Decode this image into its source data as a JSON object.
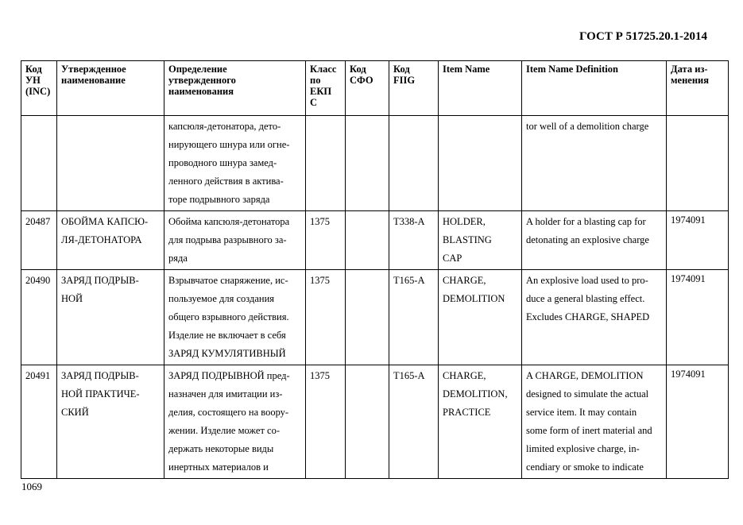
{
  "header": {
    "doc_code": "ГОСТ Р 51725.20.1-2014"
  },
  "footer": {
    "page_number": "1069"
  },
  "table": {
    "columns": [
      [
        "Код",
        "УН",
        "(INC)"
      ],
      [
        "Утвержденное",
        "наименование"
      ],
      [
        "Определение",
        "утвержденного",
        "наименования"
      ],
      [
        "Класс",
        "по",
        "ЕКП",
        "С"
      ],
      [
        "Код",
        "СФО"
      ],
      [
        "Код",
        "FIIG"
      ],
      [
        "Item Name"
      ],
      [
        "Item Name Definition"
      ],
      [
        "Дата из-",
        "менения"
      ]
    ],
    "rows": [
      [
        [],
        [],
        [
          "капсюля-детонатора, дето-",
          "нирующего шнура или огне-",
          "проводного шнура замед-",
          "ленного действия в актива-",
          "торе подрывного заряда"
        ],
        [],
        [],
        [],
        [],
        [
          "tor well of a demolition charge"
        ],
        []
      ],
      [
        [
          "20487"
        ],
        [
          "ОБОЙМА КАПСЮ-",
          "ЛЯ-ДЕТОНАТОРА"
        ],
        [
          "Обойма капсюля-детонатора",
          "для подрыва разрывного за-",
          "ряда"
        ],
        [
          "1375"
        ],
        [],
        [
          "T338-A"
        ],
        [
          "HOLDER,",
          "BLASTING",
          "CAP"
        ],
        [
          "A holder for a blasting cap for",
          "detonating an explosive charge"
        ],
        [
          "1974091"
        ]
      ],
      [
        [
          "20490"
        ],
        [
          "ЗАРЯД ПОДРЫВ-",
          "НОЙ"
        ],
        [
          "Взрывчатое снаряжение, ис-",
          "пользуемое для создания",
          "общего взрывного действия.",
          "Изделие не включает в себя",
          "ЗАРЯД КУМУЛЯТИВНЫЙ"
        ],
        [
          "1375"
        ],
        [],
        [
          "T165-A"
        ],
        [
          "CHARGE,",
          "DEMOLITION"
        ],
        [
          "An explosive load used to pro-",
          "duce a general blasting effect.",
          "Excludes CHARGE, SHAPED"
        ],
        [
          "1974091"
        ]
      ],
      [
        [
          "20491"
        ],
        [
          "ЗАРЯД ПОДРЫВ-",
          "НОЙ ПРАКТИЧЕ-",
          "СКИЙ"
        ],
        [
          "ЗАРЯД ПОДРЫВНОЙ пред-",
          "назначен для имитации из-",
          "делия, состоящего на воору-",
          "жении. Изделие может со-",
          "держать некоторые виды",
          "инертных материалов и"
        ],
        [
          "1375"
        ],
        [],
        [
          "T165-A"
        ],
        [
          "CHARGE,",
          "DEMOLITION,",
          "PRACTICE"
        ],
        [
          "A CHARGE, DEMOLITION",
          "designed to simulate the actual",
          "service item. It may contain",
          "some form of inert material and",
          "limited explosive charge, in-",
          "cendiary or smoke to indicate"
        ],
        [
          "1974091"
        ]
      ]
    ]
  }
}
